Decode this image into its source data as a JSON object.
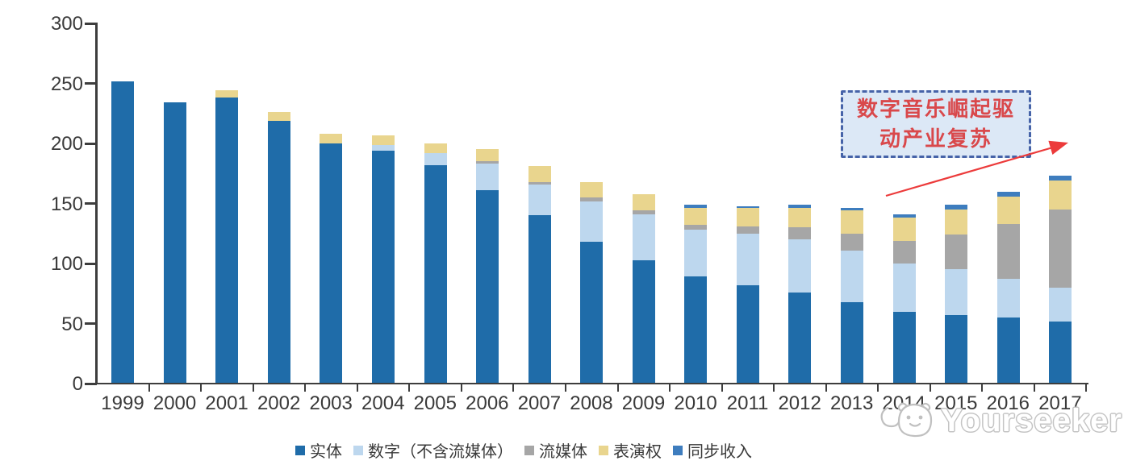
{
  "chart_data": {
    "type": "bar",
    "stacked": true,
    "title": "",
    "categories": [
      "1999",
      "2000",
      "2001",
      "2002",
      "2003",
      "2004",
      "2005",
      "2006",
      "2007",
      "2008",
      "2009",
      "2010",
      "2011",
      "2012",
      "2013",
      "2014",
      "2015",
      "2016",
      "2017"
    ],
    "series": [
      {
        "name": "实体",
        "color": "#1F6CA9",
        "values": [
          252,
          234,
          238,
          219,
          200,
          194,
          182,
          161,
          140,
          118,
          103,
          89,
          82,
          76,
          68,
          60,
          57,
          55,
          52
        ]
      },
      {
        "name": "数字（不含流媒体）",
        "color": "#BDD7EE",
        "values": [
          0,
          0,
          0,
          0,
          0,
          5,
          10,
          22,
          26,
          34,
          38,
          39,
          43,
          44,
          43,
          40,
          38,
          32,
          28
        ]
      },
      {
        "name": "流媒体",
        "color": "#A6A6A6",
        "values": [
          0,
          0,
          0,
          0,
          0,
          0,
          0,
          2,
          2,
          3,
          3,
          4,
          6,
          10,
          14,
          19,
          29,
          46,
          65
        ]
      },
      {
        "name": "表演权",
        "color": "#E9D58E",
        "values": [
          0,
          0,
          6,
          7,
          8,
          8,
          8,
          10,
          13,
          13,
          14,
          14,
          15,
          16,
          19,
          19,
          21,
          23,
          24
        ]
      },
      {
        "name": "同步收入",
        "color": "#3E7DBE",
        "values": [
          0,
          0,
          0,
          0,
          0,
          0,
          0,
          0,
          0,
          0,
          0,
          3,
          2,
          3,
          2,
          3,
          4,
          4,
          4
        ]
      }
    ],
    "ylim": [
      0,
      300
    ],
    "yticks": [
      0,
      50,
      100,
      150,
      200,
      250,
      300
    ],
    "grid": false,
    "legend_position": "bottom",
    "axis_color": "#3A3A3A"
  },
  "annotation": {
    "line1": "数字音乐崛起驱",
    "line2": "动产业复苏",
    "box_fill": "#DCE8F6",
    "border_color": "#4663A8",
    "text_color": "#D9484B",
    "arrow_color": "#EC3B3B"
  },
  "watermark": {
    "text": "Yourseeker"
  }
}
